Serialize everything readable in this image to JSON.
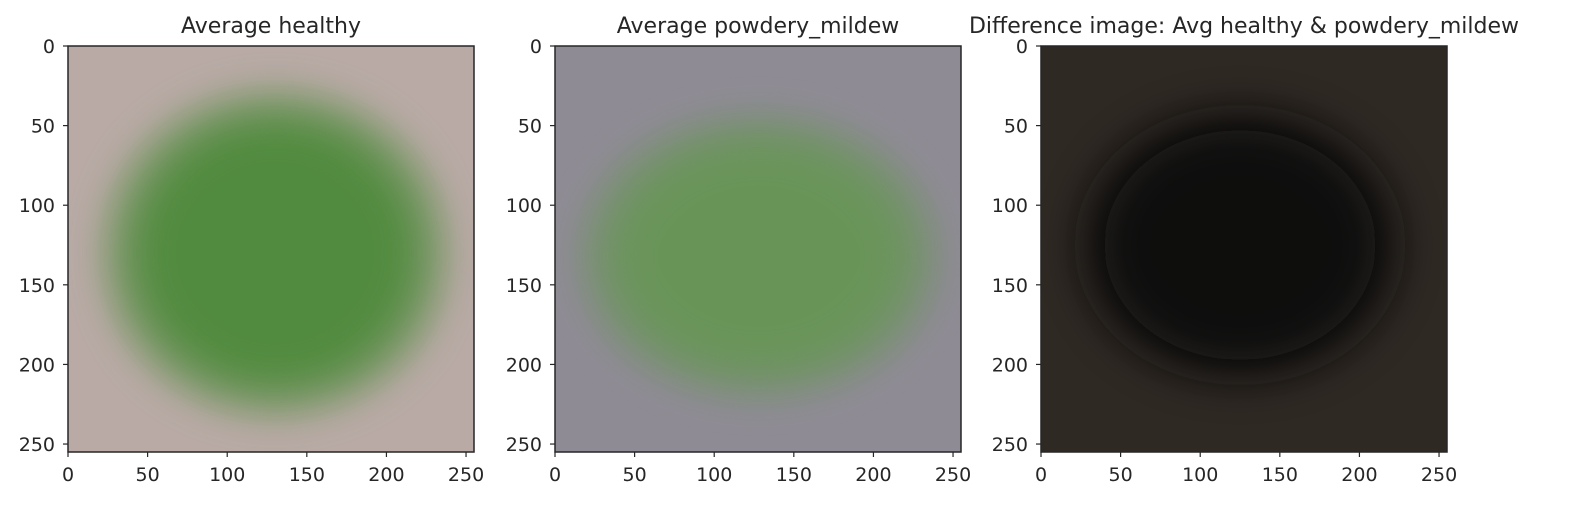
{
  "chart_data": [
    {
      "type": "image",
      "title": "Average healthy",
      "xlabel": "",
      "ylabel": "",
      "xlim": [
        0,
        255
      ],
      "ylim": [
        255,
        0
      ],
      "x_ticks": [
        "0",
        "50",
        "100",
        "150",
        "200",
        "250"
      ],
      "y_ticks": [
        "0",
        "50",
        "100",
        "150",
        "200",
        "250"
      ],
      "grid": false,
      "image": {
        "background_color": "#b9aaa6",
        "leaf_color": "#4e8a3a",
        "leaf_center": [
          130,
          130
        ],
        "leaf_radius": [
          108,
          102
        ]
      }
    },
    {
      "type": "image",
      "title": "Average powdery_mildew",
      "xlabel": "",
      "ylabel": "",
      "xlim": [
        0,
        255
      ],
      "ylim": [
        255,
        0
      ],
      "x_ticks": [
        "0",
        "50",
        "100",
        "150",
        "200",
        "250"
      ],
      "y_ticks": [
        "0",
        "50",
        "100",
        "150",
        "200",
        "250"
      ],
      "grid": false,
      "image": {
        "background_color": "#8f8b95",
        "leaf_color": "#679556",
        "leaf_center": [
          128,
          132
        ],
        "leaf_radius": [
          112,
          88
        ]
      }
    },
    {
      "type": "image",
      "title": "Difference image: Avg healthy & powdery_mildew",
      "xlabel": "",
      "ylabel": "",
      "xlim": [
        0,
        255
      ],
      "ylim": [
        255,
        0
      ],
      "x_ticks": [
        "0",
        "50",
        "100",
        "150",
        "200",
        "250"
      ],
      "y_ticks": [
        "0",
        "50",
        "100",
        "150",
        "200",
        "250"
      ],
      "grid": false,
      "image": {
        "background_color": "#2f2924",
        "leaf_color": "#0a0908",
        "leaf_center": [
          125,
          125
        ],
        "leaf_radius": [
          104,
          88
        ]
      }
    }
  ]
}
